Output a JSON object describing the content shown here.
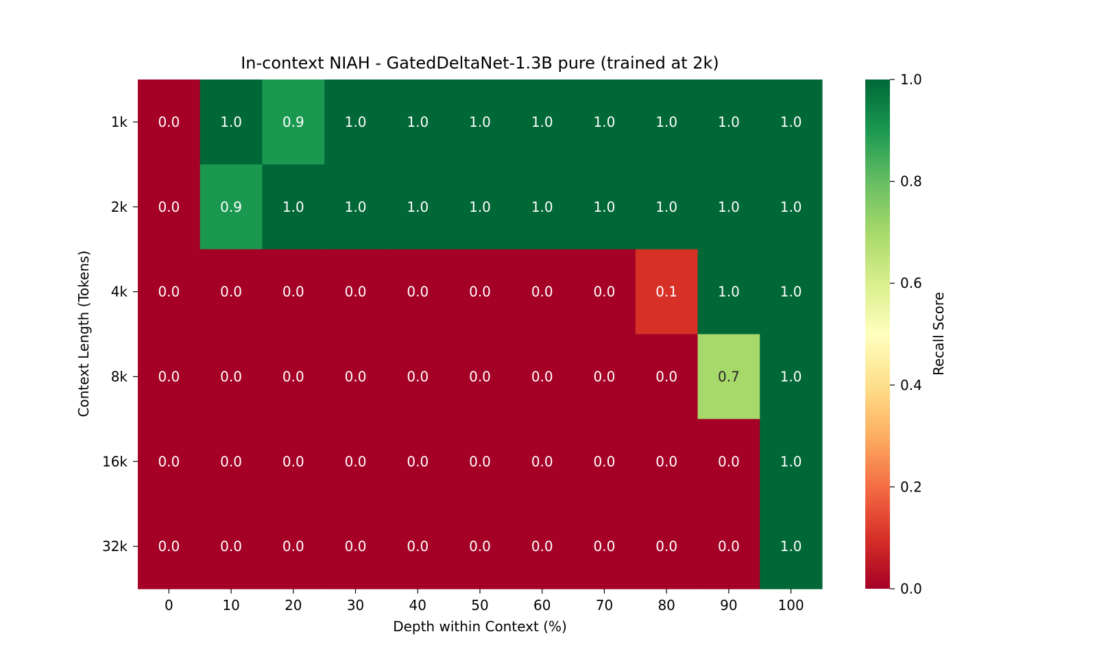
{
  "chart_data": {
    "type": "heatmap",
    "title": "In-context NIAH - GatedDeltaNet-1.3B pure (trained at 2k)",
    "xlabel": "Depth within Context (%)",
    "ylabel": "Context Length (Tokens)",
    "x_categories": [
      "0",
      "10",
      "20",
      "30",
      "40",
      "50",
      "60",
      "70",
      "80",
      "90",
      "100"
    ],
    "y_categories": [
      "1k",
      "2k",
      "4k",
      "8k",
      "16k",
      "32k"
    ],
    "values": [
      [
        0.0,
        1.0,
        0.9,
        1.0,
        1.0,
        1.0,
        1.0,
        1.0,
        1.0,
        1.0,
        1.0
      ],
      [
        0.0,
        0.9,
        1.0,
        1.0,
        1.0,
        1.0,
        1.0,
        1.0,
        1.0,
        1.0,
        1.0
      ],
      [
        0.0,
        0.0,
        0.0,
        0.0,
        0.0,
        0.0,
        0.0,
        0.0,
        0.1,
        1.0,
        1.0
      ],
      [
        0.0,
        0.0,
        0.0,
        0.0,
        0.0,
        0.0,
        0.0,
        0.0,
        0.0,
        0.7,
        1.0
      ],
      [
        0.0,
        0.0,
        0.0,
        0.0,
        0.0,
        0.0,
        0.0,
        0.0,
        0.0,
        0.0,
        1.0
      ],
      [
        0.0,
        0.0,
        0.0,
        0.0,
        0.0,
        0.0,
        0.0,
        0.0,
        0.0,
        0.0,
        1.0
      ]
    ],
    "value_labels": [
      [
        "0.0",
        "1.0",
        "0.9",
        "1.0",
        "1.0",
        "1.0",
        "1.0",
        "1.0",
        "1.0",
        "1.0",
        "1.0"
      ],
      [
        "0.0",
        "0.9",
        "1.0",
        "1.0",
        "1.0",
        "1.0",
        "1.0",
        "1.0",
        "1.0",
        "1.0",
        "1.0"
      ],
      [
        "0.0",
        "0.0",
        "0.0",
        "0.0",
        "0.0",
        "0.0",
        "0.0",
        "0.0",
        "0.1",
        "1.0",
        "1.0"
      ],
      [
        "0.0",
        "0.0",
        "0.0",
        "0.0",
        "0.0",
        "0.0",
        "0.0",
        "0.0",
        "0.0",
        "0.7",
        "1.0"
      ],
      [
        "0.0",
        "0.0",
        "0.0",
        "0.0",
        "0.0",
        "0.0",
        "0.0",
        "0.0",
        "0.0",
        "0.0",
        "1.0"
      ],
      [
        "0.0",
        "0.0",
        "0.0",
        "0.0",
        "0.0",
        "0.0",
        "0.0",
        "0.0",
        "0.0",
        "0.0",
        "1.0"
      ]
    ],
    "colorbar": {
      "label": "Recall Score",
      "range": [
        0.0,
        1.0
      ],
      "ticks": [
        0.0,
        0.2,
        0.4,
        0.6,
        0.8,
        1.0
      ],
      "tick_labels": [
        "0.0",
        "0.2",
        "0.4",
        "0.6",
        "0.8",
        "1.0"
      ],
      "colormap": "RdYlGn",
      "color_stops": [
        "#a50026",
        "#d73027",
        "#f46d43",
        "#fdae61",
        "#fee08b",
        "#ffffbf",
        "#d9ef8b",
        "#a6d96a",
        "#66bd63",
        "#1a9850",
        "#006837"
      ]
    },
    "grid": false
  }
}
